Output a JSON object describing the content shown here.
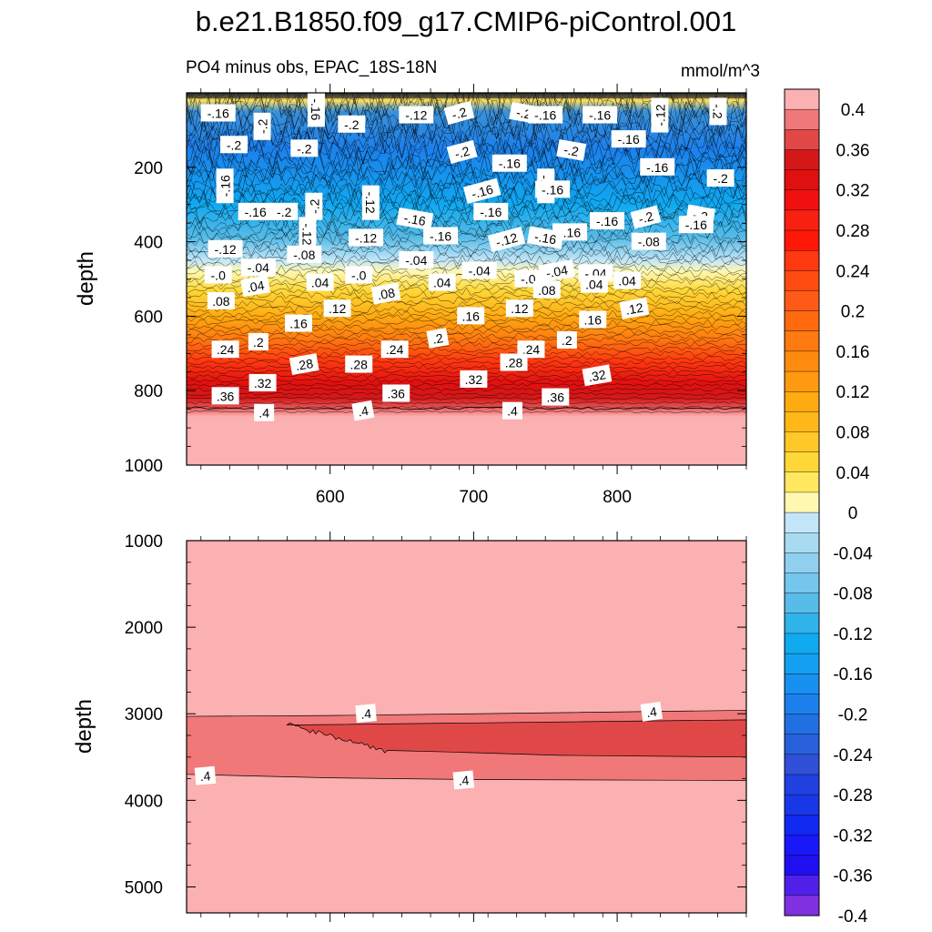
{
  "title": "b.e21.B1850.f09_g17.CMIP6-piControl.001",
  "subtitle": "PO4 minus obs, EPAC_18S-18N",
  "units": "mmol/m^3",
  "chart_data": [
    {
      "type": "contour",
      "panel": "top",
      "ylabel": "depth",
      "xlim": [
        500,
        890
      ],
      "ylim": [
        1000,
        0
      ],
      "x_ticks": [
        600,
        700,
        800
      ],
      "y_ticks": [
        200,
        400,
        600,
        800,
        1000
      ],
      "contour_levels": [
        -0.4,
        -0.38,
        -0.36,
        -0.34,
        -0.32,
        -0.3,
        -0.28,
        -0.26,
        -0.24,
        -0.22,
        -0.2,
        -0.18,
        -0.16,
        -0.14,
        -0.12,
        -0.1,
        -0.08,
        -0.06,
        -0.04,
        -0.02,
        0,
        0.02,
        0.04,
        0.06,
        0.08,
        0.1,
        0.12,
        0.14,
        0.16,
        0.18,
        0.2,
        0.22,
        0.24,
        0.26,
        0.28,
        0.3,
        0.32,
        0.34,
        0.36,
        0.38,
        0.4
      ],
      "depth_profile": [
        {
          "depth": 0,
          "value": -0.1
        },
        {
          "depth": 50,
          "value": -0.17
        },
        {
          "depth": 150,
          "value": -0.2
        },
        {
          "depth": 250,
          "value": -0.17
        },
        {
          "depth": 350,
          "value": -0.12
        },
        {
          "depth": 420,
          "value": -0.06
        },
        {
          "depth": 470,
          "value": -0.01
        },
        {
          "depth": 520,
          "value": 0.05
        },
        {
          "depth": 580,
          "value": 0.12
        },
        {
          "depth": 640,
          "value": 0.19
        },
        {
          "depth": 700,
          "value": 0.26
        },
        {
          "depth": 760,
          "value": 0.31
        },
        {
          "depth": 810,
          "value": 0.36
        },
        {
          "depth": 850,
          "value": 0.4
        },
        {
          "depth": 1000,
          "value": 0.41
        }
      ],
      "labels": [
        {
          "x": 522,
          "depth": 55,
          "text": "-.16"
        },
        {
          "x": 553,
          "depth": 90,
          "text": "-.2"
        },
        {
          "x": 590,
          "depth": 45,
          "text": "-.16"
        },
        {
          "x": 615,
          "depth": 85,
          "text": "-.2"
        },
        {
          "x": 660,
          "depth": 60,
          "text": "-.12"
        },
        {
          "x": 690,
          "depth": 55,
          "text": "-.2"
        },
        {
          "x": 735,
          "depth": 55,
          "text": "-.2"
        },
        {
          "x": 750,
          "depth": 60,
          "text": "-.16"
        },
        {
          "x": 788,
          "depth": 60,
          "text": "-.16"
        },
        {
          "x": 830,
          "depth": 60,
          "text": "-.12"
        },
        {
          "x": 870,
          "depth": 50,
          "text": "-.2"
        },
        {
          "x": 533,
          "depth": 140,
          "text": "-.2"
        },
        {
          "x": 582,
          "depth": 150,
          "text": "-.2"
        },
        {
          "x": 692,
          "depth": 160,
          "text": "-.2"
        },
        {
          "x": 768,
          "depth": 155,
          "text": "-.2"
        },
        {
          "x": 808,
          "depth": 125,
          "text": "-.16"
        },
        {
          "x": 725,
          "depth": 190,
          "text": "-.16"
        },
        {
          "x": 527,
          "depth": 250,
          "text": "-.16"
        },
        {
          "x": 750,
          "depth": 250,
          "text": "-.16"
        },
        {
          "x": 828,
          "depth": 200,
          "text": "-.16"
        },
        {
          "x": 872,
          "depth": 230,
          "text": "-.2"
        },
        {
          "x": 706,
          "depth": 265,
          "text": "-.16"
        },
        {
          "x": 659,
          "depth": 340,
          "text": "-.16"
        },
        {
          "x": 712,
          "depth": 320,
          "text": "-.16"
        },
        {
          "x": 755,
          "depth": 260,
          "text": "-.16"
        },
        {
          "x": 589,
          "depth": 305,
          "text": "-.2"
        },
        {
          "x": 628,
          "depth": 295,
          "text": "-.12"
        },
        {
          "x": 767,
          "depth": 375,
          "text": "-.16"
        },
        {
          "x": 793,
          "depth": 345,
          "text": "-.16"
        },
        {
          "x": 820,
          "depth": 335,
          "text": "-.2"
        },
        {
          "x": 858,
          "depth": 330,
          "text": "-.2"
        },
        {
          "x": 548,
          "depth": 320,
          "text": "-.16"
        },
        {
          "x": 568,
          "depth": 320,
          "text": "-.2"
        },
        {
          "x": 527,
          "depth": 420,
          "text": "-.12"
        },
        {
          "x": 584,
          "depth": 380,
          "text": "-.12"
        },
        {
          "x": 625,
          "depth": 390,
          "text": "-.12"
        },
        {
          "x": 677,
          "depth": 385,
          "text": "-.16"
        },
        {
          "x": 723,
          "depth": 395,
          "text": "-.12"
        },
        {
          "x": 750,
          "depth": 390,
          "text": "-.16"
        },
        {
          "x": 822,
          "depth": 400,
          "text": "-.08"
        },
        {
          "x": 855,
          "depth": 355,
          "text": "-.16"
        },
        {
          "x": 582,
          "depth": 435,
          "text": "-.08"
        },
        {
          "x": 660,
          "depth": 450,
          "text": "-.04"
        },
        {
          "x": 704,
          "depth": 478,
          "text": "-.04"
        },
        {
          "x": 550,
          "depth": 470,
          "text": "-.04"
        },
        {
          "x": 758,
          "depth": 480,
          "text": "-.04"
        },
        {
          "x": 785,
          "depth": 485,
          "text": "-.04"
        },
        {
          "x": 522,
          "depth": 490,
          "text": "-.0"
        },
        {
          "x": 620,
          "depth": 490,
          "text": "-.0"
        },
        {
          "x": 738,
          "depth": 500,
          "text": "-.0"
        },
        {
          "x": 548,
          "depth": 520,
          "text": ".04"
        },
        {
          "x": 593,
          "depth": 510,
          "text": ".04"
        },
        {
          "x": 678,
          "depth": 510,
          "text": ".04"
        },
        {
          "x": 807,
          "depth": 505,
          "text": ".04"
        },
        {
          "x": 784,
          "depth": 515,
          "text": ".04"
        },
        {
          "x": 639,
          "depth": 540,
          "text": ".08"
        },
        {
          "x": 751,
          "depth": 530,
          "text": ".08"
        },
        {
          "x": 524,
          "depth": 560,
          "text": ".08"
        },
        {
          "x": 605,
          "depth": 580,
          "text": ".12"
        },
        {
          "x": 732,
          "depth": 580,
          "text": ".12"
        },
        {
          "x": 812,
          "depth": 580,
          "text": ".12"
        },
        {
          "x": 578,
          "depth": 620,
          "text": ".16"
        },
        {
          "x": 698,
          "depth": 600,
          "text": ".16"
        },
        {
          "x": 783,
          "depth": 610,
          "text": ".16"
        },
        {
          "x": 550,
          "depth": 670,
          "text": ".2"
        },
        {
          "x": 675,
          "depth": 660,
          "text": ".2"
        },
        {
          "x": 765,
          "depth": 665,
          "text": ".2"
        },
        {
          "x": 527,
          "depth": 690,
          "text": ".24"
        },
        {
          "x": 645,
          "depth": 690,
          "text": ".24"
        },
        {
          "x": 740,
          "depth": 690,
          "text": ".24"
        },
        {
          "x": 582,
          "depth": 730,
          "text": ".28"
        },
        {
          "x": 620,
          "depth": 730,
          "text": ".28"
        },
        {
          "x": 728,
          "depth": 725,
          "text": ".28"
        },
        {
          "x": 553,
          "depth": 780,
          "text": ".32"
        },
        {
          "x": 700,
          "depth": 770,
          "text": ".32"
        },
        {
          "x": 786,
          "depth": 760,
          "text": ".32"
        },
        {
          "x": 527,
          "depth": 815,
          "text": ".36"
        },
        {
          "x": 646,
          "depth": 808,
          "text": ".36"
        },
        {
          "x": 757,
          "depth": 818,
          "text": ".36"
        },
        {
          "x": 554,
          "depth": 860,
          "text": ".4"
        },
        {
          "x": 623,
          "depth": 855,
          "text": ".4"
        },
        {
          "x": 727,
          "depth": 855,
          "text": ".4"
        }
      ]
    },
    {
      "type": "contour",
      "panel": "bottom",
      "ylabel": "depth",
      "xlim": [
        500,
        890
      ],
      "ylim": [
        5300,
        1000
      ],
      "y_ticks": [
        1000,
        2000,
        3000,
        4000,
        5000
      ],
      "regions": [
        {
          "value": 0.41,
          "description": "background"
        },
        {
          "value": 0.38,
          "top_depth": 3030,
          "bottom_depth": 3770,
          "x_start": 500,
          "x_end": 890
        },
        {
          "value": 0.39,
          "top_depth": 3070,
          "bottom_depth": 3500,
          "x_start": 570,
          "x_end": 890
        }
      ],
      "labels": [
        {
          "x": 625,
          "depth": 3000,
          "text": ".4"
        },
        {
          "x": 513,
          "depth": 3720,
          "text": ".4"
        },
        {
          "x": 693,
          "depth": 3770,
          "text": ".4"
        },
        {
          "x": 824,
          "depth": 2980,
          "text": ".4"
        }
      ]
    }
  ],
  "colorbar": {
    "ticks": [
      "0.4",
      "0.36",
      "0.32",
      "0.28",
      "0.24",
      "0.2",
      "0.16",
      "0.12",
      "0.08",
      "0.04",
      "0",
      "-0.04",
      "-0.08",
      "-0.12",
      "-0.16",
      "-0.2",
      "-0.24",
      "-0.28",
      "-0.32",
      "-0.36",
      "-0.4"
    ],
    "colors": [
      "#fbb0b2",
      "#f07878",
      "#e04848",
      "#d41818",
      "#e01010",
      "#f01010",
      "#f82010",
      "#ff1808",
      "#ff3810",
      "#ff4a10",
      "#ff5a18",
      "#ff6a10",
      "#ff7a10",
      "#ff8a10",
      "#ff9a10",
      "#ffaa10",
      "#ffb818",
      "#ffc828",
      "#ffd838",
      "#ffe860",
      "#fff8b0",
      "#c2e6f8",
      "#a8dbf2",
      "#90d0ee",
      "#74c6ec",
      "#58bce8",
      "#30b2ea",
      "#10aaf0",
      "#14a0f0",
      "#1890f0",
      "#1c80ec",
      "#2070e4",
      "#2860dc",
      "#3050d8",
      "#2040e0",
      "#1838e8",
      "#1028f0",
      "#1818f8",
      "#2010f0",
      "#5020e8",
      "#8030e0"
    ]
  }
}
